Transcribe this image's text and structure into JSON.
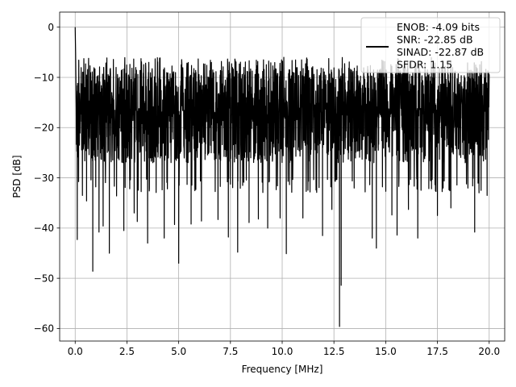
{
  "chart_data": {
    "type": "line",
    "xlabel": "Frequency [MHz]",
    "ylabel": "PSD [dB]",
    "xlim": [
      -0.75,
      20.75
    ],
    "ylim": [
      -62.5,
      3.0
    ],
    "xticks": [
      0.0,
      2.5,
      5.0,
      7.5,
      10.0,
      12.5,
      15.0,
      17.5,
      20.0
    ],
    "xtick_labels": [
      "0.0",
      "2.5",
      "5.0",
      "7.5",
      "10.0",
      "12.5",
      "15.0",
      "17.5",
      "20.0"
    ],
    "yticks": [
      0,
      -10,
      -20,
      -30,
      -40,
      -50,
      -60
    ],
    "ytick_labels": [
      "0",
      "−10",
      "−20",
      "−30",
      "−40",
      "−50",
      "−60"
    ],
    "grid": true,
    "legend": {
      "placement": "upper-right",
      "entries": [
        "ENOB: -4.09 bits",
        "SNR: -22.85 dB",
        "SINAD: -22.87 dB",
        "SFDR: 1.15"
      ]
    },
    "series": [
      {
        "color": "#000000",
        "x_range": [
          0.0,
          20.0
        ],
        "dc_spike": [
          [
            0.0,
            0.0
          ],
          [
            0.02,
            -5.0
          ],
          [
            0.05,
            -16.0
          ]
        ],
        "upper_envelope_approx": -6.0,
        "lower_envelope_approx": -30.0,
        "deep_nulls": [
          [
            0.1,
            -42.3
          ],
          [
            0.35,
            -33.5
          ],
          [
            0.55,
            -34.6
          ],
          [
            0.85,
            -48.6
          ],
          [
            1.15,
            -40.8
          ],
          [
            1.35,
            -39.6
          ],
          [
            1.65,
            -45.0
          ],
          [
            2.0,
            -33.6
          ],
          [
            2.35,
            -40.5
          ],
          [
            2.85,
            -37.0
          ],
          [
            3.0,
            -38.7
          ],
          [
            3.5,
            -43.0
          ],
          [
            4.3,
            -42.0
          ],
          [
            4.8,
            -39.3
          ],
          [
            5.0,
            -47.0
          ],
          [
            5.6,
            -39.2
          ],
          [
            6.1,
            -38.6
          ],
          [
            6.9,
            -38.3
          ],
          [
            7.4,
            -41.8
          ],
          [
            7.85,
            -44.8
          ],
          [
            8.4,
            -38.9
          ],
          [
            8.85,
            -38.2
          ],
          [
            9.3,
            -40.0
          ],
          [
            9.9,
            -38.0
          ],
          [
            10.2,
            -45.1
          ],
          [
            11.0,
            -38.0
          ],
          [
            11.95,
            -41.5
          ],
          [
            12.4,
            -36.3
          ],
          [
            12.77,
            -59.6
          ],
          [
            12.85,
            -51.4
          ],
          [
            14.35,
            -42.0
          ],
          [
            14.55,
            -44.0
          ],
          [
            15.3,
            -37.4
          ],
          [
            15.55,
            -41.4
          ],
          [
            16.1,
            -36.3
          ],
          [
            16.55,
            -42.0
          ],
          [
            17.5,
            -37.5
          ],
          [
            18.15,
            -36.0
          ],
          [
            19.3,
            -40.8
          ],
          [
            19.9,
            -33.5
          ]
        ]
      }
    ]
  }
}
